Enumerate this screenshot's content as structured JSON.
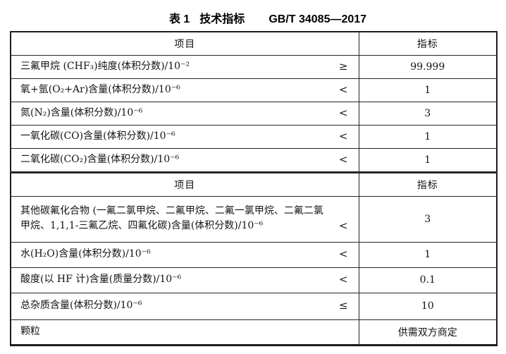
{
  "colors": {
    "background": "#ffffff",
    "border": "#1c1c1c",
    "text": "#141414"
  },
  "title": {
    "prefix": "表 1",
    "name": "技术指标",
    "standard": "GB/T 34085—2017"
  },
  "table": {
    "header": {
      "item": "项目",
      "value": "指标"
    },
    "header2": {
      "item": "项目",
      "value": "指标"
    },
    "rows": [
      {
        "item": "三氟甲烷 (CHF₃)纯度(体积分数)/10⁻²",
        "operator": "≥",
        "value": "99.999"
      },
      {
        "item": "氧+氩(O₂+Ar)含量(体积分数)/10⁻⁶",
        "operator": "<",
        "value": "1"
      },
      {
        "item": "氮(N₂)含量(体积分数)/10⁻⁶",
        "operator": "<",
        "value": "3"
      },
      {
        "item": "一氧化碳(CO)含量(体积分数)/10⁻⁶",
        "operator": "<",
        "value": "1"
      },
      {
        "item": "二氧化碳(CO₂)含量(体积分数)/10⁻⁶",
        "operator": "<",
        "value": "1"
      },
      {
        "item": "其他碳氟化合物 (一氟二氯甲烷、二氟甲烷、二氟一氯甲烷、二氟二氯甲烷、1,1,1-三氟乙烷、四氟化碳)含量(体积分数)/10⁻⁶",
        "operator": "<",
        "value": "3"
      },
      {
        "item": "水(H₂O)含量(体积分数)/10⁻⁶",
        "operator": "<",
        "value": "1"
      },
      {
        "item": "酸度(以 HF 计)含量(质量分数)/10⁻⁶",
        "operator": "<",
        "value": "0.1"
      },
      {
        "item": "总杂质含量(体积分数)/10⁻⁶",
        "operator": "≤",
        "value": "10"
      },
      {
        "item": "颗粒",
        "operator": "",
        "value": "供需双方商定"
      }
    ]
  }
}
